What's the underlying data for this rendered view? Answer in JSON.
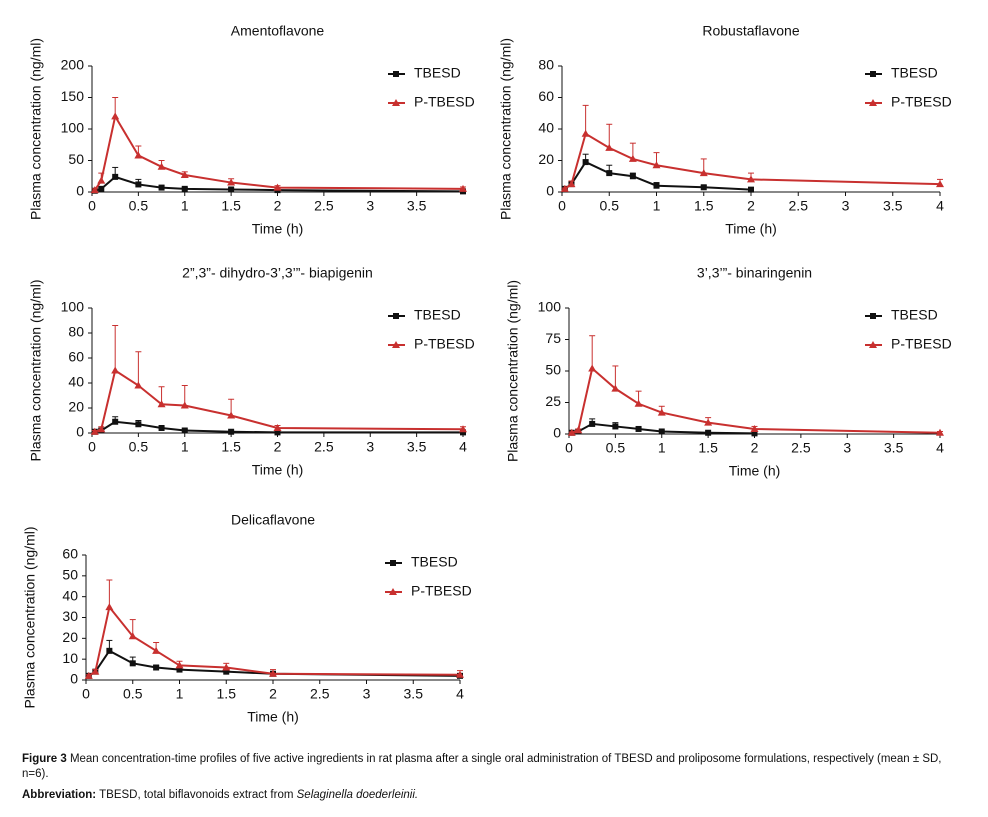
{
  "chart_data": [
    {
      "type": "line",
      "title": "Amentoflavone",
      "x_label": "Time (h)",
      "y_label": "Plasma concentration (ng/ml)",
      "x": [
        0.03,
        0.1,
        0.25,
        0.5,
        0.75,
        1,
        1.5,
        2,
        4
      ],
      "series": [
        {
          "name": "TBESD",
          "color": "#111111",
          "marker": "square",
          "values": [
            2,
            5,
            24,
            12,
            7,
            5,
            4,
            3,
            1
          ],
          "errors": [
            1,
            3,
            15,
            8,
            3,
            2,
            2,
            1,
            1
          ]
        },
        {
          "name": "P-TBESD",
          "color": "#c8302f",
          "marker": "triangle",
          "values": [
            3,
            18,
            120,
            58,
            40,
            27,
            15,
            7,
            5
          ],
          "errors": [
            2,
            12,
            30,
            15,
            10,
            5,
            6,
            3,
            3
          ]
        }
      ],
      "xlim": [
        0,
        4
      ],
      "xticks": [
        0,
        0.5,
        1,
        1.5,
        2,
        2.5,
        3,
        3.5
      ],
      "ylim": [
        0,
        200
      ],
      "yticks": [
        0,
        50,
        100,
        150,
        200
      ],
      "grid": false,
      "legend": "upper right"
    },
    {
      "type": "line",
      "title": "Robustaflavone",
      "x_label": "Time (h)",
      "y_label": "Plasma concentration (ng/ml)",
      "x": [
        0.03,
        0.1,
        0.25,
        0.5,
        0.75,
        1,
        1.5,
        2,
        4
      ],
      "series": [
        {
          "name": "TBESD",
          "color": "#111111",
          "marker": "square",
          "values": [
            2,
            5,
            19,
            12,
            10,
            4,
            3,
            1.5,
            null
          ],
          "errors": [
            0.5,
            1,
            5,
            5,
            2,
            2,
            1,
            0.5,
            null
          ]
        },
        {
          "name": "P-TBESD",
          "color": "#c8302f",
          "marker": "triangle",
          "values": [
            2,
            5,
            37,
            28,
            21,
            17,
            12,
            8,
            5
          ],
          "errors": [
            0.5,
            2,
            18,
            15,
            10,
            8,
            9,
            4,
            3
          ]
        }
      ],
      "xlim": [
        0,
        4
      ],
      "xticks": [
        0,
        0.5,
        1,
        1.5,
        2,
        2.5,
        3,
        3.5,
        4
      ],
      "ylim": [
        0,
        80
      ],
      "yticks": [
        0,
        20,
        40,
        60,
        80
      ],
      "grid": false,
      "legend": "upper right"
    },
    {
      "type": "line",
      "title": "2”,3”- dihydro-3’,3’”- biapigenin",
      "x_label": "Time (h)",
      "y_label": "Plasma concentration (ng/ml)",
      "x": [
        0.03,
        0.1,
        0.25,
        0.5,
        0.75,
        1,
        1.5,
        2,
        4
      ],
      "series": [
        {
          "name": "TBESD",
          "color": "#111111",
          "marker": "square",
          "values": [
            1,
            2,
            9,
            7,
            4,
            2,
            1,
            0.5,
            0.5
          ],
          "errors": [
            0.5,
            1,
            4,
            3,
            1,
            1,
            0.5,
            0.5,
            0.5
          ]
        },
        {
          "name": "P-TBESD",
          "color": "#c8302f",
          "marker": "triangle",
          "values": [
            1,
            3,
            50,
            38,
            23,
            22,
            14,
            4,
            3
          ],
          "errors": [
            1,
            2,
            36,
            27,
            14,
            16,
            13,
            2,
            2
          ]
        }
      ],
      "xlim": [
        0,
        4
      ],
      "xticks": [
        0,
        0.5,
        1,
        1.5,
        2,
        2.5,
        3,
        3.5,
        4
      ],
      "ylim": [
        0,
        100
      ],
      "yticks": [
        0,
        20,
        40,
        60,
        80,
        100
      ],
      "grid": false,
      "legend": "upper right"
    },
    {
      "type": "line",
      "title": "3’,3’”- binaringenin",
      "x_label": "Time (h)",
      "y_label": "Plasma concentration (ng/ml)",
      "x": [
        0.03,
        0.1,
        0.25,
        0.5,
        0.75,
        1,
        1.5,
        2,
        4
      ],
      "series": [
        {
          "name": "TBESD",
          "color": "#111111",
          "marker": "square",
          "values": [
            1,
            2,
            8,
            6,
            4,
            2,
            1,
            0.5,
            null
          ],
          "errors": [
            0.5,
            1,
            4,
            3,
            1,
            0.5,
            0.5,
            0.5,
            null
          ]
        },
        {
          "name": "P-TBESD",
          "color": "#c8302f",
          "marker": "triangle",
          "values": [
            1,
            3,
            52,
            36,
            24,
            17,
            9,
            4,
            1
          ],
          "errors": [
            0.5,
            1,
            26,
            18,
            10,
            5,
            4,
            2,
            1
          ]
        }
      ],
      "xlim": [
        0,
        4
      ],
      "xticks": [
        0,
        0.5,
        1,
        1.5,
        2,
        2.5,
        3,
        3.5,
        4
      ],
      "ylim": [
        0,
        100
      ],
      "yticks": [
        0,
        25,
        50,
        75,
        100
      ],
      "grid": false,
      "legend": "upper right"
    },
    {
      "type": "line",
      "title": "Delicaflavone",
      "x_label": "Time (h)",
      "y_label": "Plasma concentration (ng/ml)",
      "x": [
        0.03,
        0.1,
        0.25,
        0.5,
        0.75,
        1,
        1.5,
        2,
        4
      ],
      "series": [
        {
          "name": "TBESD",
          "color": "#111111",
          "marker": "square",
          "values": [
            2,
            4,
            14,
            8,
            6,
            5,
            4,
            3,
            2
          ],
          "errors": [
            0.5,
            1,
            5,
            3,
            1,
            1,
            1,
            1,
            1
          ]
        },
        {
          "name": "P-TBESD",
          "color": "#c8302f",
          "marker": "triangle",
          "values": [
            2,
            4,
            35,
            21,
            14,
            7,
            6,
            3,
            2.5
          ],
          "errors": [
            0.5,
            1,
            13,
            8,
            4,
            2,
            2,
            2,
            2
          ]
        }
      ],
      "xlim": [
        0,
        4
      ],
      "xticks": [
        0,
        0.5,
        1,
        1.5,
        2,
        2.5,
        3,
        3.5,
        4
      ],
      "ylim": [
        0,
        60
      ],
      "yticks": [
        0,
        10,
        20,
        30,
        40,
        50,
        60
      ],
      "grid": false,
      "legend": "upper right"
    }
  ],
  "caption": {
    "label": "Figure 3",
    "text": "Mean concentration-time profiles of five active ingredients in rat plasma after a single oral administration of TBESD and proliposome formulations, respectively (mean ± SD, n=6)."
  },
  "abbreviation": {
    "label": "Abbreviation:",
    "text": "TBESD, total biflavonoids extract from",
    "species": "Selaginella doederleinii."
  }
}
